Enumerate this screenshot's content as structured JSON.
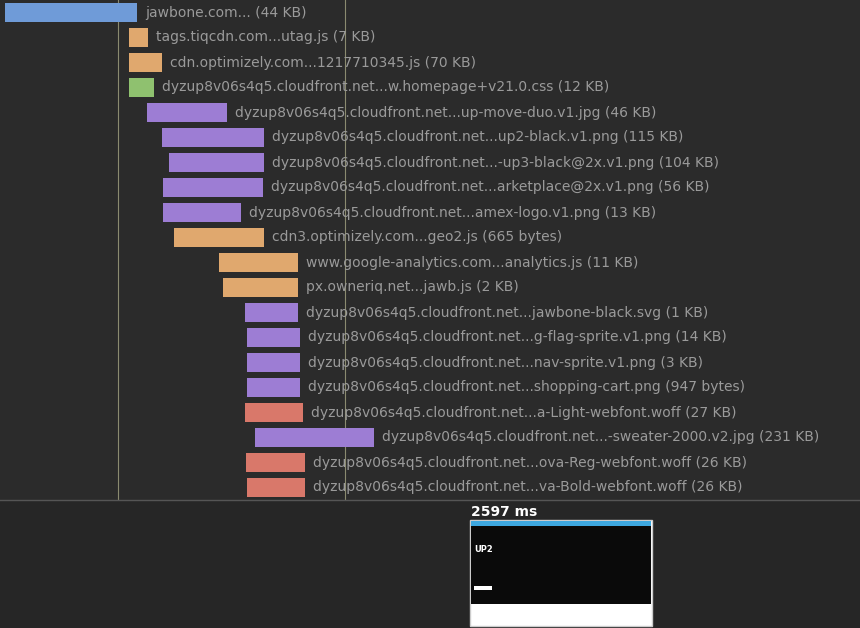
{
  "chart_data": {
    "type": "waterfall",
    "orientation": "horizontal",
    "tick_labels": false,
    "grid": false,
    "categories": [
      "jawbone.com... (44 KB)",
      "tags.tiqcdn.com...utag.js (7 KB)",
      "cdn.optimizely.com...1217710345.js (70 KB)",
      "dyzup8v06s4q5.cloudfront.net...w.homepage+v21.0.css (12 KB)",
      "dyzup8v06s4q5.cloudfront.net...up-move-duo.v1.jpg (46 KB)",
      "dyzup8v06s4q5.cloudfront.net...up2-black.v1.png (115 KB)",
      "dyzup8v06s4q5.cloudfront.net...-up3-black@2x.v1.png (104 KB)",
      "dyzup8v06s4q5.cloudfront.net...arketplace@2x.v1.png (56 KB)",
      "dyzup8v06s4q5.cloudfront.net...amex-logo.v1.png (13 KB)",
      "cdn3.optimizely.com...geo2.js (665 bytes)",
      "www.google-analytics.com...analytics.js (11 KB)",
      "px.owneriq.net...jawb.js (2 KB)",
      "dyzup8v06s4q5.cloudfront.net...jawbone-black.svg (1 KB)",
      "dyzup8v06s4q5.cloudfront.net...g-flag-sprite.v1.png (14 KB)",
      "dyzup8v06s4q5.cloudfront.net...nav-sprite.v1.png (3 KB)",
      "dyzup8v06s4q5.cloudfront.net...shopping-cart.png (947 bytes)",
      "dyzup8v06s4q5.cloudfront.net...a-Light-webfont.woff (27 KB)",
      "dyzup8v06s4q5.cloudfront.net...-sweater-2000.v2.jpg (231 KB)",
      "dyzup8v06s4q5.cloudfront.net...ova-Reg-webfont.woff (26 KB)",
      "dyzup8v06s4q5.cloudfront.net...va-Bold-webfont.woff (26 KB)"
    ],
    "starts": [
      5,
      129,
      129,
      129,
      147,
      162,
      169,
      163,
      163,
      174,
      219,
      223,
      245,
      247,
      247,
      247,
      245,
      255,
      246,
      247
    ],
    "values": [
      132,
      19,
      33,
      25,
      80,
      102,
      95,
      100,
      78,
      90,
      79,
      75,
      53,
      53,
      53,
      53,
      58,
      119,
      59,
      58
    ],
    "colors": [
      "#6f9bd8",
      "#e0a86e",
      "#e0a86e",
      "#8fc16f",
      "#9d7dd4",
      "#9d7dd4",
      "#9d7dd4",
      "#9d7dd4",
      "#9d7dd4",
      "#e0a86e",
      "#e0a86e",
      "#e0a86e",
      "#9d7dd4",
      "#9d7dd4",
      "#9d7dd4",
      "#9d7dd4",
      "#d9786a",
      "#9d7dd4",
      "#d9786a",
      "#d9786a"
    ],
    "markers": [
      118,
      345
    ],
    "xlim": [
      0,
      860
    ],
    "filmstrip": {
      "label": "2597 ms",
      "thumbnail_text": "UP2"
    }
  }
}
